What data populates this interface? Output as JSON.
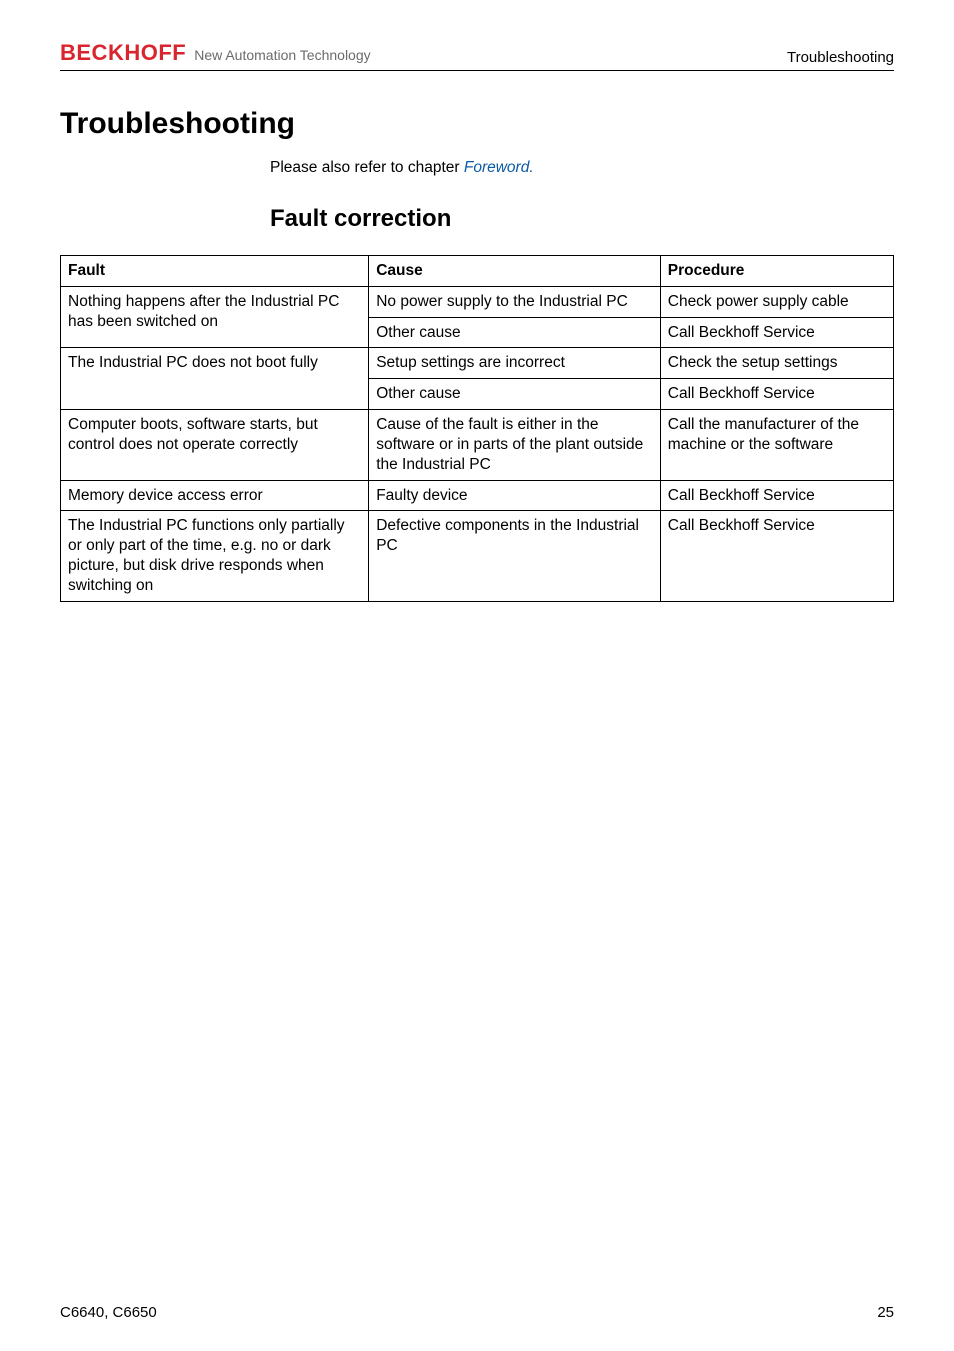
{
  "brand": {
    "name": "BECKHOFF",
    "tagline": "New Automation Technology"
  },
  "header": {
    "section_label": "Troubleshooting"
  },
  "title": "Troubleshooting",
  "intro": {
    "prefix": "Please also refer to chapter ",
    "link_text": "Foreword."
  },
  "subtitle": "Fault correction",
  "table": {
    "headers": {
      "fault": "Fault",
      "cause": "Cause",
      "procedure": "Procedure"
    },
    "col_widths": {
      "fault": "37%",
      "cause": "35%",
      "procedure": "28%"
    },
    "rows": [
      {
        "fault": "Nothing happens after the Industrial PC has been switched on",
        "causes": [
          {
            "cause": "No power supply to the Industrial PC",
            "procedure": "Check power supply cable"
          },
          {
            "cause": "Other cause",
            "procedure": "Call Beckhoff Service"
          }
        ]
      },
      {
        "fault": "The Industrial PC does not boot fully",
        "causes": [
          {
            "cause": "Setup settings are incorrect",
            "procedure": "Check the setup settings"
          },
          {
            "cause": "Other cause",
            "procedure": "Call Beckhoff Service"
          }
        ]
      },
      {
        "fault": "Computer boots, software starts, but control does not operate correctly",
        "causes": [
          {
            "cause": "Cause of the fault is either in the software or in parts of the plant outside the Industrial PC",
            "procedure": "Call the manufacturer of the machine or the software"
          }
        ]
      },
      {
        "fault": "Memory device access error",
        "causes": [
          {
            "cause": "Faulty device",
            "procedure": "Call Beckhoff Service"
          }
        ]
      },
      {
        "fault": "The Industrial PC functions only partially or only part of the time, e.g. no or dark picture, but disk drive responds when switching on",
        "causes": [
          {
            "cause": "Defective components in the Industrial PC",
            "procedure": "Call Beckhoff Service"
          }
        ]
      }
    ]
  },
  "footer": {
    "doc_id": "C6640, C6650",
    "page_number": "25"
  },
  "colors": {
    "brand_red": "#d9262e",
    "link_blue": "#0b5aa6",
    "text": "#000000",
    "tagline_grey": "#6b6b6b",
    "background": "#ffffff"
  },
  "typography": {
    "body_fontsize_pt": 11.5,
    "h1_fontsize_pt": 22,
    "h2_fontsize_pt": 18,
    "brand_fontsize_pt": 16,
    "footer_fontsize_pt": 11
  }
}
